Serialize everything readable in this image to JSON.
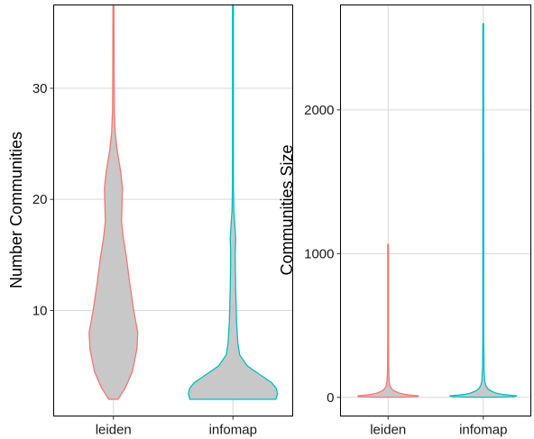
{
  "chart_data": [
    {
      "type": "violin",
      "categories": [
        "leiden",
        "infomap"
      ],
      "ylabel": "Number Communities",
      "ylim": [
        0.5,
        37.5
      ],
      "yticks": [
        10,
        20,
        30
      ],
      "grid": true,
      "colors": {
        "leiden": "#F8766D",
        "infomap": "#00BFC4",
        "fill": "#C8C8C8"
      },
      "series": [
        {
          "category": "leiden",
          "profile": [
            [
              2,
              0.1
            ],
            [
              3,
              0.26
            ],
            [
              4.5,
              0.42
            ],
            [
              6.5,
              0.52
            ],
            [
              8,
              0.54
            ],
            [
              10,
              0.45
            ],
            [
              12.5,
              0.36
            ],
            [
              15,
              0.28
            ],
            [
              16.5,
              0.22
            ],
            [
              18,
              0.18
            ],
            [
              19.5,
              0.19
            ],
            [
              21,
              0.2
            ],
            [
              22.5,
              0.16
            ],
            [
              24.5,
              0.08
            ],
            [
              26,
              0.04
            ],
            [
              28,
              0.02
            ],
            [
              31,
              0.015
            ],
            [
              37.5,
              0.01
            ]
          ]
        },
        {
          "category": "infomap",
          "profile": [
            [
              2,
              0.95
            ],
            [
              2.5,
              0.99
            ],
            [
              3,
              0.96
            ],
            [
              3.5,
              0.86
            ],
            [
              4,
              0.68
            ],
            [
              5,
              0.32
            ],
            [
              6,
              0.15
            ],
            [
              7,
              0.11
            ],
            [
              9,
              0.08
            ],
            [
              12,
              0.06
            ],
            [
              15,
              0.05
            ],
            [
              16.5,
              0.06
            ],
            [
              17.5,
              0.045
            ],
            [
              19,
              0.02
            ],
            [
              21,
              0.012
            ],
            [
              25,
              0.01
            ],
            [
              30,
              0.01
            ],
            [
              37.5,
              0.01
            ]
          ]
        }
      ]
    },
    {
      "type": "violin",
      "categories": [
        "leiden",
        "infomap"
      ],
      "ylabel": "Communities Size",
      "ylim": [
        -130,
        2730
      ],
      "yticks": [
        0,
        1000,
        2000
      ],
      "grid": true,
      "colors": {
        "leiden": "#F8766D",
        "infomap": "#00BFC4",
        "fill": "#C8C8C8"
      },
      "series": [
        {
          "category": "leiden",
          "profile": [
            [
              1,
              0.4
            ],
            [
              5,
              0.78
            ],
            [
              10,
              0.8
            ],
            [
              15,
              0.62
            ],
            [
              20,
              0.45
            ],
            [
              30,
              0.29
            ],
            [
              45,
              0.16
            ],
            [
              60,
              0.09
            ],
            [
              80,
              0.05
            ],
            [
              110,
              0.03
            ],
            [
              150,
              0.02
            ],
            [
              200,
              0.015
            ],
            [
              400,
              0.01
            ],
            [
              1065,
              0.01
            ]
          ]
        },
        {
          "category": "infomap",
          "profile": [
            [
              1,
              0.4
            ],
            [
              5,
              0.82
            ],
            [
              10,
              0.88
            ],
            [
              15,
              0.7
            ],
            [
              20,
              0.5
            ],
            [
              30,
              0.33
            ],
            [
              45,
              0.2
            ],
            [
              60,
              0.12
            ],
            [
              80,
              0.07
            ],
            [
              110,
              0.04
            ],
            [
              150,
              0.03
            ],
            [
              200,
              0.02
            ],
            [
              400,
              0.012
            ],
            [
              2600,
              0.01
            ]
          ]
        }
      ]
    }
  ]
}
